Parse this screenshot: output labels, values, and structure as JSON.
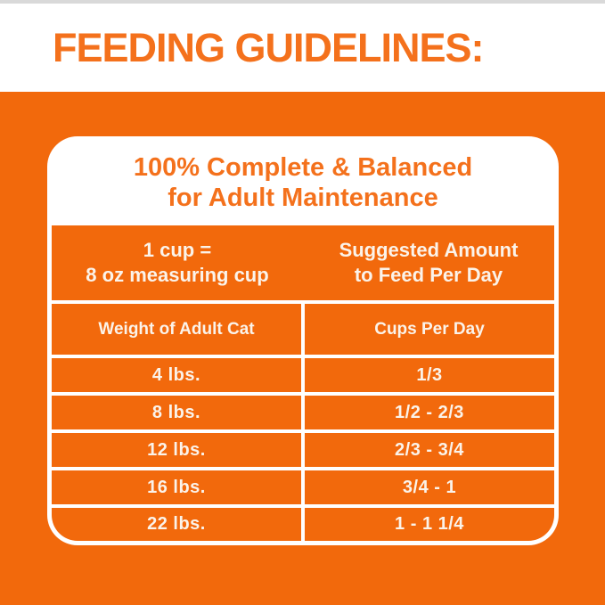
{
  "page_title": "FEEDING GUIDELINES:",
  "card": {
    "heading_line1": "100% Complete & Balanced",
    "heading_line2": "for Adult Maintenance",
    "info_row": {
      "cup_line1": "1 cup =",
      "cup_line2": "8 oz measuring cup",
      "suggested_line1": "Suggested Amount",
      "suggested_line2": "to Feed Per Day"
    },
    "column_headers": {
      "weight": "Weight of Adult Cat",
      "cups": "Cups Per Day"
    },
    "rows": [
      {
        "weight": "4 lbs.",
        "cups": "1/3"
      },
      {
        "weight": "8 lbs.",
        "cups": "1/2 - 2/3"
      },
      {
        "weight": "12 lbs.",
        "cups": "2/3 - 3/4"
      },
      {
        "weight": "16 lbs.",
        "cups": "3/4 - 1"
      },
      {
        "weight": "22 lbs.",
        "cups": "1 - 1 1/4"
      }
    ]
  },
  "chart_data": {
    "type": "table",
    "title": "Feeding Guidelines - Suggested Amount to Feed Per Day",
    "columns": [
      "Weight of Adult Cat",
      "Cups Per Day"
    ],
    "rows": [
      [
        "4 lbs.",
        "1/3"
      ],
      [
        "8 lbs.",
        "1/2 - 2/3"
      ],
      [
        "12 lbs.",
        "2/3 - 3/4"
      ],
      [
        "16 lbs.",
        "3/4 - 1"
      ],
      [
        "22 lbs.",
        "1 - 1 1/4"
      ]
    ],
    "note": "1 cup = 8 oz measuring cup"
  },
  "colors": {
    "orange_background": "#F2690C",
    "orange_text": "#F4711C",
    "table_text": "#FBF3EA",
    "card_background": "#FFFFFF"
  }
}
